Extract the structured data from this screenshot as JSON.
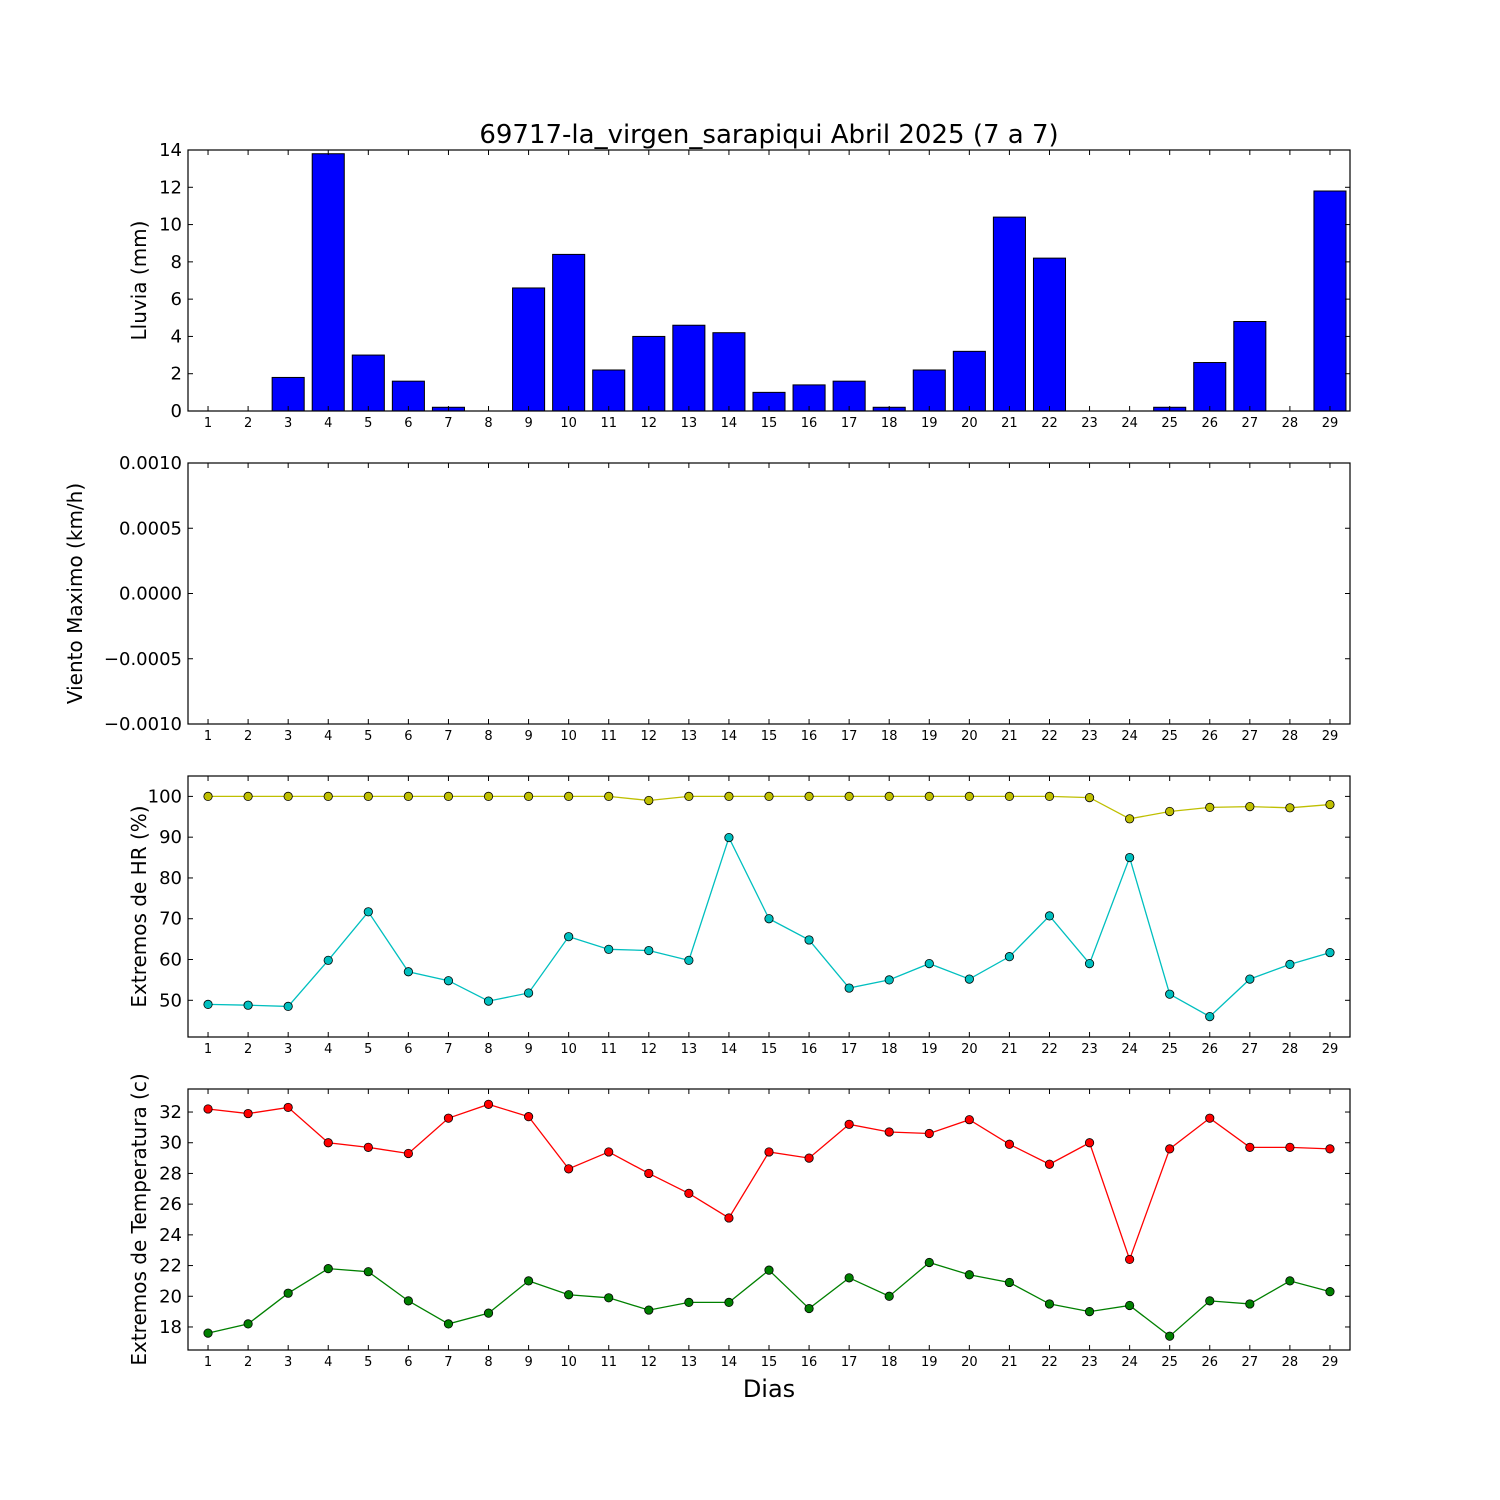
{
  "figure": {
    "title": "69717-la_virgen_sarapiqui Abril 2025  (7 a 7)",
    "xlabel": "Dias"
  },
  "chart_data": [
    {
      "type": "bar",
      "ylabel": "Lluvia (mm)",
      "categories": [
        "1",
        "2",
        "3",
        "4",
        "5",
        "6",
        "7",
        "8",
        "9",
        "10",
        "11",
        "12",
        "13",
        "14",
        "15",
        "16",
        "17",
        "18",
        "19",
        "20",
        "21",
        "22",
        "23",
        "24",
        "25",
        "26",
        "27",
        "28",
        "29"
      ],
      "values": [
        0,
        0,
        1.8,
        13.8,
        3.0,
        1.6,
        0.2,
        0,
        6.6,
        8.4,
        2.2,
        4.0,
        4.6,
        4.2,
        1.0,
        1.4,
        1.6,
        0.2,
        2.2,
        3.2,
        10.4,
        8.2,
        0,
        0,
        0.2,
        2.6,
        4.8,
        0,
        11.8
      ],
      "ylim": [
        0,
        14
      ],
      "yticks": [
        0,
        2,
        4,
        6,
        8,
        10,
        12,
        14
      ],
      "ytick_labels": [
        "0",
        "2",
        "4",
        "6",
        "8",
        "10",
        "12",
        "14"
      ],
      "color": "#0000ff"
    },
    {
      "type": "line",
      "ylabel": "Viento Maximo (km/h)",
      "categories": [
        "1",
        "2",
        "3",
        "4",
        "5",
        "6",
        "7",
        "8",
        "9",
        "10",
        "11",
        "12",
        "13",
        "14",
        "15",
        "16",
        "17",
        "18",
        "19",
        "20",
        "21",
        "22",
        "23",
        "24",
        "25",
        "26",
        "27",
        "28",
        "29"
      ],
      "series": [],
      "ylim": [
        -0.001,
        0.001
      ],
      "yticks": [
        -0.001,
        -0.0005,
        0,
        0.0005,
        0.001
      ],
      "ytick_labels": [
        "−0.0010",
        "−0.0005",
        "0.0000",
        "0.0005",
        "0.0010"
      ]
    },
    {
      "type": "line",
      "ylabel": "Extremos de HR (%)",
      "categories": [
        "1",
        "2",
        "3",
        "4",
        "5",
        "6",
        "7",
        "8",
        "9",
        "10",
        "11",
        "12",
        "13",
        "14",
        "15",
        "16",
        "17",
        "18",
        "19",
        "20",
        "21",
        "22",
        "23",
        "24",
        "25",
        "26",
        "27",
        "28",
        "29"
      ],
      "series": [
        {
          "color": "#bfbf00",
          "values": [
            100,
            100,
            100,
            100,
            100,
            100,
            100,
            100,
            100,
            100,
            100,
            99,
            100,
            100,
            100,
            100,
            100,
            100,
            100,
            100,
            100,
            100,
            99.7,
            94.5,
            96.3,
            97.3,
            97.5,
            97.2,
            98
          ]
        },
        {
          "color": "#00bfbf",
          "values": [
            49,
            48.8,
            48.5,
            59.8,
            71.7,
            57,
            54.8,
            49.8,
            51.8,
            65.6,
            62.5,
            62.2,
            59.8,
            89.9,
            70,
            64.8,
            53,
            55,
            59,
            55.2,
            60.7,
            70.7,
            59,
            85,
            51.5,
            46,
            55.2,
            58.8,
            61.7
          ]
        }
      ],
      "ylim": [
        41,
        105
      ],
      "yticks": [
        50,
        60,
        70,
        80,
        90,
        100
      ],
      "ytick_labels": [
        "50",
        "60",
        "70",
        "80",
        "90",
        "100"
      ]
    },
    {
      "type": "line",
      "ylabel": "Extremos de Temperatura (c)",
      "categories": [
        "1",
        "2",
        "3",
        "4",
        "5",
        "6",
        "7",
        "8",
        "9",
        "10",
        "11",
        "12",
        "13",
        "14",
        "15",
        "16",
        "17",
        "18",
        "19",
        "20",
        "21",
        "22",
        "23",
        "24",
        "25",
        "26",
        "27",
        "28",
        "29"
      ],
      "series": [
        {
          "color": "#ff0000",
          "values": [
            32.2,
            31.9,
            32.3,
            30.0,
            29.7,
            29.3,
            31.6,
            32.5,
            31.7,
            28.3,
            29.4,
            28.0,
            26.7,
            25.1,
            29.4,
            29.0,
            31.2,
            30.7,
            30.6,
            31.5,
            29.9,
            28.6,
            30.0,
            22.4,
            29.6,
            31.6,
            29.7,
            29.7,
            29.6
          ]
        },
        {
          "color": "#008000",
          "values": [
            17.6,
            18.2,
            20.2,
            21.8,
            21.6,
            19.7,
            18.2,
            18.9,
            21.0,
            20.1,
            19.9,
            19.1,
            19.6,
            19.6,
            21.7,
            19.2,
            21.2,
            20.0,
            22.2,
            21.4,
            20.9,
            19.5,
            19.0,
            19.4,
            17.4,
            19.7,
            19.5,
            21.0,
            20.3
          ]
        }
      ],
      "ylim": [
        16.5,
        33.5
      ],
      "yticks": [
        18,
        20,
        22,
        24,
        26,
        28,
        30,
        32
      ],
      "ytick_labels": [
        "18",
        "20",
        "22",
        "24",
        "26",
        "28",
        "30",
        "32"
      ]
    }
  ]
}
